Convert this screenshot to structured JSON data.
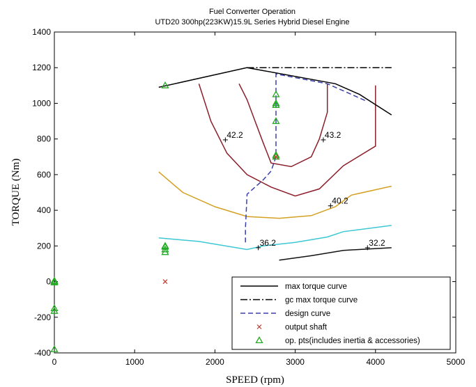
{
  "chart_data": {
    "type": "line",
    "title": "Fuel Converter Operation",
    "subtitle": "UTD20 300hp(223KW)15.9L Series Hybrid Diesel Engine",
    "xlabel": "SPEED (rpm)",
    "ylabel": "TORQUE (Nm)",
    "xlim": [
      0,
      5000
    ],
    "ylim": [
      -400,
      1400
    ],
    "xticks": [
      0,
      1000,
      2000,
      3000,
      4000,
      5000
    ],
    "yticks": [
      -400,
      -200,
      0,
      200,
      400,
      600,
      800,
      1000,
      1200,
      1400
    ],
    "grid": false,
    "legend_position": "bottom-right",
    "legend": [
      {
        "label": "max torque curve",
        "style": "solid-line",
        "color": "#000000"
      },
      {
        "label": "gc max torque curve",
        "style": "dash-dot-line",
        "color": "#000000"
      },
      {
        "label": "design curve",
        "style": "dashed-line",
        "color": "#3b3fa8"
      },
      {
        "label": "output shaft",
        "style": "x-marker",
        "color": "#c0392b"
      },
      {
        "label": "op. pts(includes inertia & accessories)",
        "style": "triangle-marker",
        "color": "#22aa22"
      }
    ],
    "series": [
      {
        "name": "max torque curve",
        "color": "#000000",
        "dash": "",
        "x": [
          1300,
          2400,
          3500,
          3800,
          4200
        ],
        "y": [
          1090,
          1200,
          1110,
          1050,
          935
        ]
      },
      {
        "name": "gc max torque curve",
        "color": "#000000",
        "dash": "10,3,2,3",
        "x": [
          2400,
          4200
        ],
        "y": [
          1200,
          1200
        ]
      },
      {
        "name": "design curve",
        "color": "#3b3fa8",
        "dash": "7,4",
        "x": [
          2380,
          2380,
          2400,
          2500,
          2600,
          2700,
          2760,
          2760,
          3400,
          3900
        ],
        "y": [
          220,
          300,
          490,
          530,
          570,
          620,
          700,
          1165,
          1110,
          1010
        ]
      }
    ],
    "contours": [
      {
        "label": "32.2",
        "color": "#111111",
        "x": [
          2800,
          3200,
          3600,
          4200
        ],
        "y": [
          120,
          145,
          175,
          190
        ]
      },
      {
        "label": "36.2",
        "color": "#3cc7d4",
        "x": [
          1300,
          1800,
          2400,
          2600,
          3000,
          3400,
          3600,
          4200
        ],
        "y": [
          245,
          225,
          180,
          200,
          220,
          250,
          280,
          315
        ]
      },
      {
        "label": "40.2",
        "color": "#d4a021",
        "x": [
          1300,
          1600,
          2000,
          2400,
          2800,
          3200,
          3500,
          3700,
          4200
        ],
        "y": [
          615,
          500,
          420,
          365,
          355,
          370,
          420,
          485,
          535
        ]
      },
      {
        "label": "42.2",
        "color": "#8b1e2a",
        "x": [
          1800,
          1950,
          2150,
          2400,
          2700,
          3000,
          3300,
          3600,
          4000,
          4000
        ],
        "y": [
          1110,
          900,
          720,
          600,
          530,
          480,
          520,
          650,
          760,
          1100
        ]
      },
      {
        "label": "43.2",
        "color": "#8b1e2a",
        "x": [
          2300,
          2400,
          2500,
          2600,
          2700,
          2950,
          3200,
          3300,
          3400,
          3400
        ],
        "y": [
          1110,
          1020,
          900,
          780,
          665,
          645,
          700,
          800,
          950,
          1110
        ]
      }
    ],
    "contour_label_points": [
      {
        "label": "42.2",
        "x": 2130,
        "y": 795
      },
      {
        "label": "43.2",
        "x": 3350,
        "y": 795
      },
      {
        "label": "40.2",
        "x": 3440,
        "y": 425
      },
      {
        "label": "36.2",
        "x": 2540,
        "y": 190
      },
      {
        "label": "32.2",
        "x": 3900,
        "y": 190
      }
    ],
    "output_shaft_points": {
      "x": [
        1380,
        2760
      ],
      "y": [
        0,
        700
      ]
    },
    "op_points": {
      "x": [
        0,
        0,
        0,
        0,
        0,
        0,
        1380,
        1380,
        1380,
        1380,
        1380,
        2760,
        2760,
        2760,
        2760,
        2760,
        2760
      ],
      "y": [
        0,
        -150,
        -165,
        -380,
        5,
        -5,
        1100,
        200,
        195,
        165,
        180,
        1050,
        1000,
        990,
        900,
        710,
        700
      ]
    }
  }
}
